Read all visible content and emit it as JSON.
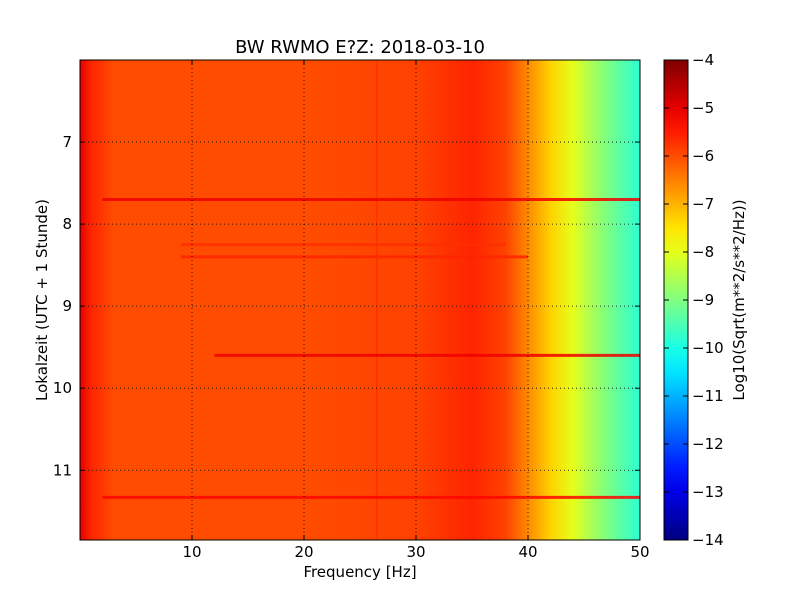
{
  "chart_data": {
    "type": "heatmap",
    "title": "BW RWMO E?Z: 2018-03-10",
    "xlabel": "Frequency [Hz]",
    "ylabel": "Lokalzeit (UTC + 1 Stunde)",
    "xlim": [
      0,
      50
    ],
    "ylim": [
      11.85,
      6.0
    ],
    "x_ticks": [
      10,
      20,
      30,
      40,
      50
    ],
    "y_ticks": [
      7,
      8,
      9,
      10,
      11
    ],
    "grid": true,
    "colormap": "jet",
    "colorbar": {
      "label": "Log10(Sqrt(m**2/s**2/Hz))",
      "min": -14,
      "max": -4,
      "ticks": [
        -4,
        -5,
        -6,
        -7,
        -8,
        -9,
        -10,
        -11,
        -12,
        -13,
        -14
      ]
    },
    "frequency_profile": [
      {
        "f": 0,
        "value": -5.0
      },
      {
        "f": 1,
        "value": -5.6
      },
      {
        "f": 3,
        "value": -6.0
      },
      {
        "f": 20,
        "value": -6.0
      },
      {
        "f": 30,
        "value": -5.9
      },
      {
        "f": 35,
        "value": -5.6
      },
      {
        "f": 38,
        "value": -5.9
      },
      {
        "f": 40,
        "value": -6.6
      },
      {
        "f": 42,
        "value": -7.3
      },
      {
        "f": 44,
        "value": -8.0
      },
      {
        "f": 46,
        "value": -8.7
      },
      {
        "f": 48,
        "value": -9.3
      },
      {
        "f": 50,
        "value": -9.8
      }
    ],
    "bands": [
      {
        "time": 7.7,
        "f_start": 2,
        "f_end": 50,
        "value": -5.1
      },
      {
        "time": 9.6,
        "f_start": 12,
        "f_end": 50,
        "value": -5.1
      },
      {
        "time": 11.33,
        "f_start": 2,
        "f_end": 50,
        "value": -5.3
      },
      {
        "time": 8.4,
        "f_start": 9,
        "f_end": 40,
        "value": -5.6
      },
      {
        "time": 8.25,
        "f_start": 9,
        "f_end": 38,
        "value": -5.7
      }
    ],
    "vertical_lines": [
      {
        "f": 26.5,
        "value": -5.6
      }
    ]
  }
}
